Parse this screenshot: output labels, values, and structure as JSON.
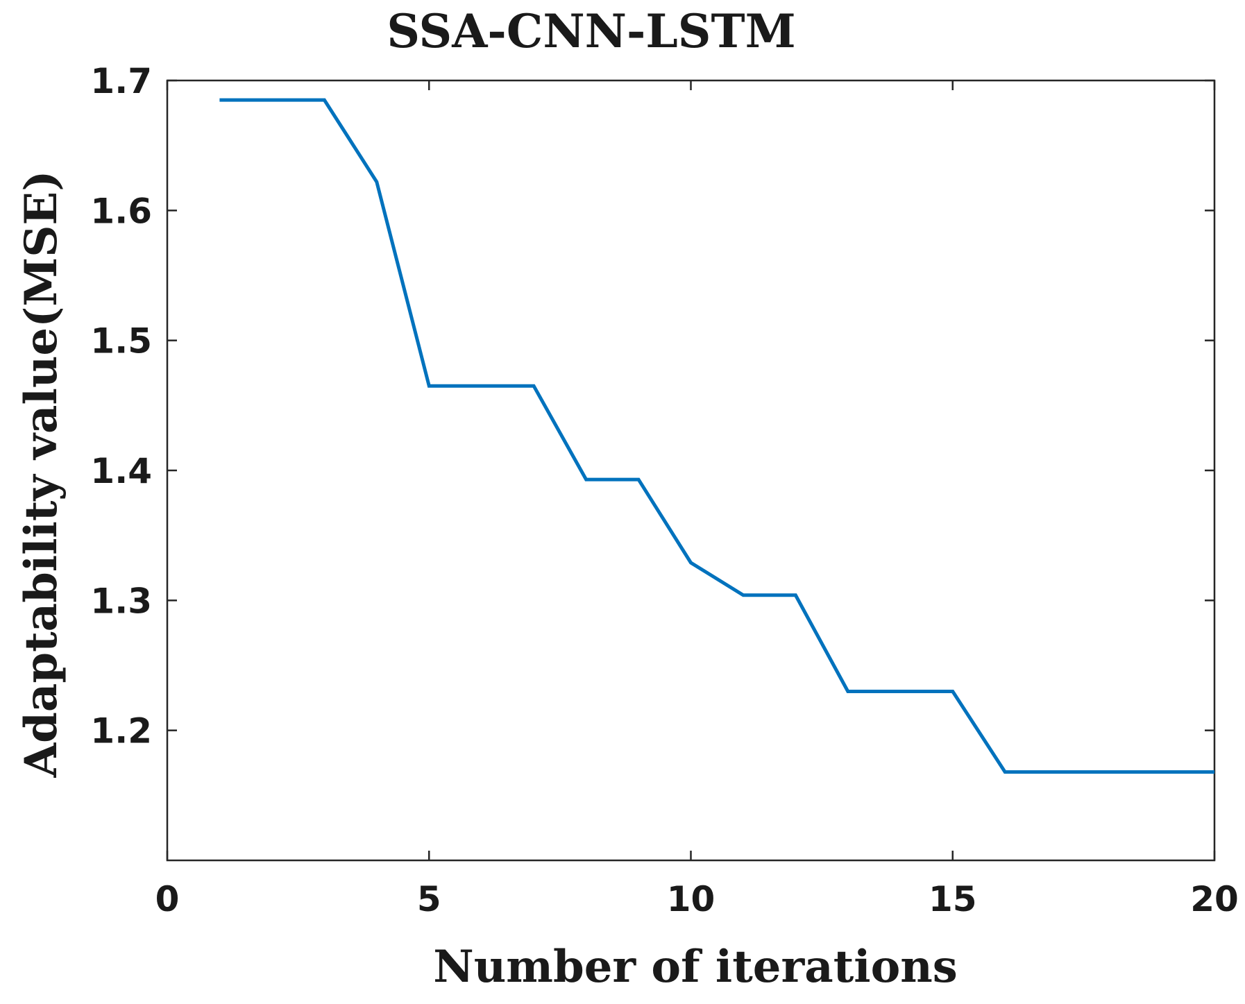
{
  "chart_data": {
    "type": "line",
    "title": "SSA-CNN-LSTM",
    "xlabel": "Number of iterations",
    "ylabel": "Adaptability value(MSE)",
    "xlim": [
      0,
      20
    ],
    "ylim": [
      1.1,
      1.7
    ],
    "xticks": [
      "0",
      "5",
      "10",
      "15",
      "20"
    ],
    "yticks": [
      "1.2",
      "1.3",
      "1.4",
      "1.5",
      "1.6",
      "1.7"
    ],
    "grid": false,
    "legend": "none",
    "series": [
      {
        "color": "#0072BD",
        "x": [
          1,
          2,
          3,
          4,
          5,
          6,
          7,
          8,
          9,
          10,
          11,
          12,
          13,
          14,
          15,
          16,
          17,
          18,
          19,
          20
        ],
        "y": [
          1.685,
          1.685,
          1.685,
          1.622,
          1.465,
          1.465,
          1.465,
          1.393,
          1.393,
          1.329,
          1.304,
          1.304,
          1.23,
          1.23,
          1.23,
          1.168,
          1.168,
          1.168,
          1.168,
          1.168
        ]
      }
    ]
  }
}
